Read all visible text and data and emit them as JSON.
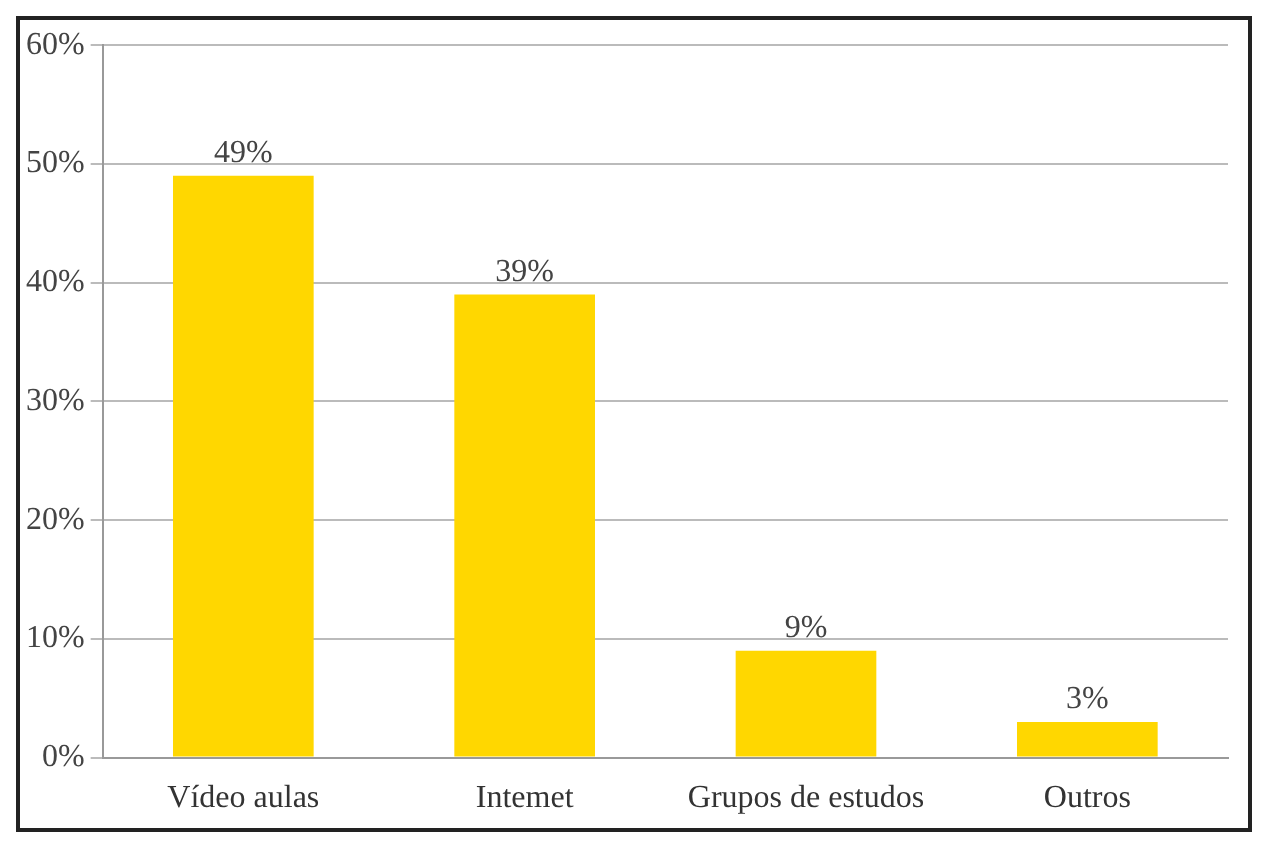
{
  "chart_data": {
    "type": "bar",
    "categories": [
      "Vídeo aulas",
      "Intemet",
      "Grupos de estudos",
      "Outros"
    ],
    "values": [
      49,
      39,
      9,
      3
    ],
    "color": "#ffd700",
    "value_labels": [
      "49%",
      "39%",
      "9%",
      "3%"
    ],
    "ylim": [
      0,
      60
    ],
    "yticks": [
      {
        "value": 0,
        "label": "0%"
      },
      {
        "value": 10,
        "label": "10%"
      },
      {
        "value": 20,
        "label": "20%"
      },
      {
        "value": 30,
        "label": "30%"
      },
      {
        "value": 40,
        "label": "40%"
      },
      {
        "value": 50,
        "label": "50%"
      },
      {
        "value": 60,
        "label": "60%"
      }
    ],
    "grid": "y",
    "legend": false
  }
}
